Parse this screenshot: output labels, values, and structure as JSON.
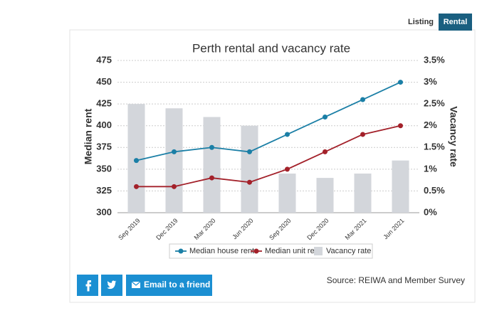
{
  "tabs": [
    "Listing",
    "Rental"
  ],
  "chart_data": {
    "type": "combo",
    "title": "Perth rental and vacancy rate",
    "ylabel": "Median rent",
    "y2label": "Vacancy rate",
    "categories": [
      "Sep 2019",
      "Dec 2019",
      "Mar 2020",
      "Jun 2020",
      "Sep 2020",
      "Dec 2020",
      "Mar 2021",
      "Jun 2021"
    ],
    "series": [
      {
        "name": "Median house rent",
        "type": "line",
        "color": "#1b7fa6",
        "values": [
          360,
          370,
          375,
          370,
          390,
          410,
          430,
          450
        ]
      },
      {
        "name": "Median unit rent",
        "type": "line",
        "color": "#a3212a",
        "values": [
          330,
          330,
          340,
          335,
          350,
          370,
          390,
          400
        ]
      },
      {
        "name": "Vacancy rate",
        "type": "bar",
        "axis": "y2",
        "color": "#d3d6db",
        "values": [
          2.5,
          2.4,
          2.2,
          2.0,
          0.9,
          0.8,
          0.9,
          1.2
        ]
      }
    ],
    "ylim": [
      300,
      475
    ],
    "yticks": [
      300,
      325,
      350,
      375,
      400,
      425,
      450,
      475
    ],
    "y2lim": [
      0,
      3.5
    ],
    "y2ticks": [
      {
        "value": 0,
        "label": "0%"
      },
      {
        "value": 0.5,
        "label": "0.5%"
      },
      {
        "value": 1,
        "label": "1%"
      },
      {
        "value": 1.5,
        "label": "1.5%"
      },
      {
        "value": 2,
        "label": "2%"
      },
      {
        "value": 2.5,
        "label": "2.5%"
      },
      {
        "value": 3,
        "label": "3%"
      },
      {
        "value": 3.5,
        "label": "3.5%"
      }
    ],
    "grid": true
  },
  "email_button": "Email to a friend",
  "source": "Source: REIWA and Member Survey"
}
